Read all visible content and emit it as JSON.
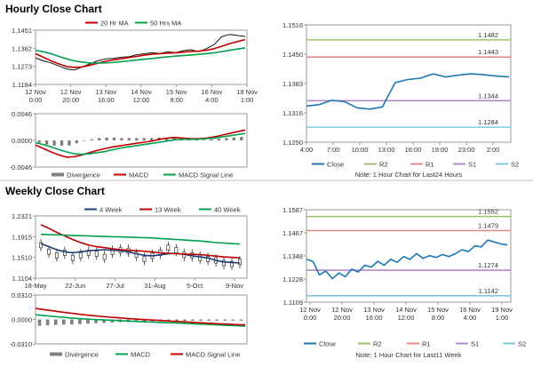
{
  "sections": {
    "hourly_title": "Hourly Close Chart",
    "weekly_title": "Weekly Close Chart"
  },
  "colors": {
    "red": "#c00000",
    "green": "#00a050",
    "close": "#1f77b4",
    "navy": "#1f3b73",
    "r2": "#9dc36a",
    "r1": "#e88b86",
    "s1": "#b28acb",
    "s2": "#7dc9dc",
    "hist": "#808080",
    "candle": "#333333"
  },
  "chart_data": [
    {
      "id": "hourly_price",
      "type": "line",
      "legend": [
        "20 Hr MA",
        "50 Hrs MA"
      ],
      "x_ticks": [
        [
          "12 Nov",
          "0:00"
        ],
        [
          "12 Nov",
          "20:00"
        ],
        [
          "13 Nov",
          "16:00"
        ],
        [
          "14 Nov",
          "12:00"
        ],
        [
          "15 Nov",
          "8:00"
        ],
        [
          "16 Nov",
          "4:00"
        ],
        [
          "19 Nov",
          "1:00"
        ]
      ],
      "y_ticks": [
        "1.1451",
        "1.1362",
        "1.1273",
        "1.1184"
      ],
      "ylim": [
        1.1184,
        1.1451
      ],
      "series": [
        {
          "name": "Close",
          "values": [
            1.1315,
            1.13,
            1.129,
            1.1275,
            1.126,
            1.1255,
            1.127,
            1.1285,
            1.13,
            1.131,
            1.1312,
            1.1318,
            1.132,
            1.133,
            1.1335,
            1.134,
            1.1336,
            1.1345,
            1.134,
            1.135,
            1.1355,
            1.1345,
            1.136,
            1.138,
            1.142,
            1.143,
            1.1425,
            1.142
          ]
        },
        {
          "name": "20 Hr MA",
          "values": [
            1.1335,
            1.1318,
            1.13,
            1.1285,
            1.1272,
            1.1268,
            1.127,
            1.1278,
            1.1288,
            1.1298,
            1.1305,
            1.131,
            1.1316,
            1.1322,
            1.1328,
            1.1333,
            1.1335,
            1.1338,
            1.134,
            1.1343,
            1.1346,
            1.1348,
            1.1352,
            1.136,
            1.1372,
            1.1385,
            1.1395,
            1.1405
          ]
        },
        {
          "name": "50 Hrs MA",
          "values": [
            1.1352,
            1.1345,
            1.1335,
            1.1322,
            1.131,
            1.13,
            1.1294,
            1.129,
            1.1289,
            1.129,
            1.1292,
            1.1296,
            1.13,
            1.1304,
            1.1308,
            1.1312,
            1.1316,
            1.132,
            1.1323,
            1.1326,
            1.1329,
            1.1332,
            1.1336,
            1.134,
            1.1346,
            1.1352,
            1.1358,
            1.1364
          ]
        }
      ]
    },
    {
      "id": "hourly_macd",
      "type": "line",
      "legend": [
        "Divergence",
        "MACD",
        "MACD Signal Line"
      ],
      "y_ticks": [
        "0.0046",
        "0.0000",
        "-0.0046"
      ],
      "ylim": [
        -0.0046,
        0.0046
      ],
      "series": [
        {
          "name": "MACD",
          "values": [
            -0.0008,
            -0.0014,
            -0.002,
            -0.0025,
            -0.0029,
            -0.0028,
            -0.0025,
            -0.0021,
            -0.0017,
            -0.0014,
            -0.0011,
            -0.0009,
            -0.0007,
            -0.0005,
            -0.0003,
            -0.0001,
            0.0002,
            0.0004,
            0.0005,
            0.0004,
            0.0003,
            0.0003,
            0.0004,
            0.0006,
            0.0009,
            0.0012,
            0.0015,
            0.0018
          ]
        },
        {
          "name": "MACD Signal Line",
          "values": [
            -0.0004,
            -0.0007,
            -0.0011,
            -0.0016,
            -0.002,
            -0.0023,
            -0.0024,
            -0.0023,
            -0.0021,
            -0.0019,
            -0.0016,
            -0.0013,
            -0.0011,
            -0.0009,
            -0.0007,
            -0.0005,
            -0.0003,
            -0.0001,
            0.0001,
            0.0002,
            0.0002,
            0.0002,
            0.0003,
            0.0004,
            0.0006,
            0.0008,
            0.001,
            0.0012
          ]
        },
        {
          "name": "Divergence",
          "values": [
            -0.0004,
            -0.0007,
            -0.0009,
            -0.0009,
            -0.0009,
            -0.0005,
            -0.0001,
            0.0002,
            0.0004,
            0.0005,
            0.0005,
            0.0004,
            0.0004,
            0.0004,
            0.0004,
            0.0004,
            0.0005,
            0.0005,
            0.0004,
            0.0002,
            0.0001,
            0.0001,
            0.0001,
            0.0002,
            0.0003,
            0.0004,
            0.0005,
            0.0006
          ]
        }
      ]
    },
    {
      "id": "hourly_close_24h",
      "type": "line",
      "note": "Note: 1 Hour Chart for Last24 Hours",
      "legend": [
        "Close",
        "R2",
        "R1",
        "S1",
        "S2"
      ],
      "x_ticks": [
        "4:00",
        "7:00",
        "10:00",
        "13:00",
        "16:00",
        "19:00",
        "23:00",
        "2:00"
      ],
      "y_ticks": [
        "1.1516",
        "1.1450",
        "1.1383",
        "1.1316",
        "1.1250"
      ],
      "ylim": [
        1.125,
        1.1516
      ],
      "levels": [
        {
          "name": "R2",
          "value": 1.1482,
          "label": "1.1482"
        },
        {
          "name": "R1",
          "value": 1.1443,
          "label": "1.1443"
        },
        {
          "name": "S1",
          "value": 1.1344,
          "label": "1.1344"
        },
        {
          "name": "S2",
          "value": 1.1284,
          "label": "1.1284"
        }
      ],
      "series": [
        {
          "name": "Close",
          "values": [
            1.1332,
            1.1335,
            1.1345,
            1.1342,
            1.1328,
            1.1325,
            1.133,
            1.1385,
            1.1392,
            1.1395,
            1.1405,
            1.1398,
            1.1402,
            1.1405,
            1.1403,
            1.14,
            1.1398
          ]
        }
      ]
    },
    {
      "id": "weekly_price",
      "type": "line",
      "legend": [
        "4 Week",
        "13 Week",
        "40 Week"
      ],
      "x_ticks": [
        "18-May",
        "22-Jun",
        "27-Jul",
        "31-Aug",
        "5-Oct",
        "9-Nov"
      ],
      "y_ticks": [
        "1.2321",
        "1.1915",
        "1.1510",
        "1.1104"
      ],
      "ylim": [
        1.1104,
        1.2321
      ],
      "series": [
        {
          "name": "4 Week",
          "values": [
            1.178,
            1.172,
            1.166,
            1.162,
            1.16,
            1.162,
            1.164,
            1.165,
            1.166,
            1.165,
            1.164,
            1.162,
            1.158,
            1.155,
            1.154,
            1.156,
            1.158,
            1.159,
            1.157,
            1.154,
            1.152,
            1.15,
            1.145,
            1.142,
            1.141,
            1.14
          ]
        },
        {
          "name": "13 Week",
          "values": [
            1.215,
            1.208,
            1.2,
            1.193,
            1.186,
            1.18,
            1.175,
            1.172,
            1.17,
            1.168,
            1.166,
            1.165,
            1.164,
            1.163,
            1.1615,
            1.16,
            1.159,
            1.158,
            1.1575,
            1.157,
            1.1565,
            1.155,
            1.1535,
            1.152,
            1.151,
            1.15
          ]
        },
        {
          "name": "40 Week",
          "values": [
            1.196,
            1.1955,
            1.195,
            1.1945,
            1.194,
            1.1935,
            1.193,
            1.1925,
            1.192,
            1.1915,
            1.191,
            1.1905,
            1.19,
            1.1895,
            1.189,
            1.188,
            1.187,
            1.186,
            1.185,
            1.184,
            1.183,
            1.1815,
            1.18,
            1.179,
            1.178,
            1.177
          ]
        }
      ],
      "candles": [
        1.175,
        1.162,
        1.155,
        1.16,
        1.15,
        1.155,
        1.16,
        1.158,
        1.152,
        1.162,
        1.165,
        1.164,
        1.156,
        1.148,
        1.154,
        1.16,
        1.17,
        1.165,
        1.156,
        1.155,
        1.15,
        1.148,
        1.145,
        1.14,
        1.138,
        1.142
      ]
    },
    {
      "id": "weekly_macd",
      "type": "line",
      "legend": [
        "Divergence",
        "MACD",
        "MACD Signal Line"
      ],
      "y_ticks": [
        "0.0310",
        "0.0000",
        "-0.0310"
      ],
      "ylim": [
        -0.031,
        0.031
      ],
      "series": [
        {
          "name": "MACD",
          "values": [
            0.006,
            0.005,
            0.004,
            0.003,
            0.002,
            0.0012,
            0.0005,
            0.0,
            -0.0005,
            -0.001,
            -0.0015,
            -0.002,
            -0.0025,
            -0.003,
            -0.0034,
            -0.0038,
            -0.0042,
            -0.0046,
            -0.005,
            -0.0055,
            -0.006,
            -0.0065,
            -0.007,
            -0.0075,
            -0.008,
            -0.0085
          ]
        },
        {
          "name": "MACD Signal Line",
          "values": [
            0.014,
            0.0125,
            0.011,
            0.0095,
            0.0082,
            0.007,
            0.0058,
            0.0047,
            0.0037,
            0.0028,
            0.002,
            0.0012,
            0.0005,
            -0.0002,
            -0.0008,
            -0.0014,
            -0.002,
            -0.0026,
            -0.0032,
            -0.0038,
            -0.0044,
            -0.005,
            -0.0055,
            -0.006,
            -0.0065,
            -0.007
          ]
        },
        {
          "name": "Divergence",
          "values": [
            -0.008,
            -0.0075,
            -0.007,
            -0.0065,
            -0.0062,
            -0.0058,
            -0.0053,
            -0.0047,
            -0.0042,
            -0.0038,
            -0.0035,
            -0.0032,
            -0.003,
            -0.0028,
            -0.0026,
            -0.0024,
            -0.0022,
            -0.002,
            -0.0018,
            -0.0017,
            -0.0016,
            -0.0015,
            -0.0015,
            -0.0015,
            -0.0015,
            -0.0015
          ]
        }
      ]
    },
    {
      "id": "weekly_close_hourly",
      "type": "line",
      "note": "Note: 1 Hour Chart for Last11 Week",
      "legend": [
        "Close",
        "R2",
        "R1",
        "S1",
        "S2"
      ],
      "x_ticks": [
        [
          "12 Nov",
          "0:00"
        ],
        [
          "12 Nov",
          "20:00"
        ],
        [
          "13 Nov",
          "16:00"
        ],
        [
          "14 Nov",
          "12:00"
        ],
        [
          "15 Nov",
          "8:00"
        ],
        [
          "16 Nov",
          "4:00"
        ],
        [
          "19 Nov",
          "1:00"
        ]
      ],
      "y_ticks": [
        "1.1587",
        "1.1467",
        "1.1348",
        "1.1228",
        "1.1109"
      ],
      "ylim": [
        1.1109,
        1.1587
      ],
      "levels": [
        {
          "name": "R2",
          "value": 1.1552,
          "label": "1.1552"
        },
        {
          "name": "R1",
          "value": 1.1479,
          "label": "1.1479"
        },
        {
          "name": "S1",
          "value": 1.1274,
          "label": "1.1274"
        },
        {
          "name": "S2",
          "value": 1.1142,
          "label": "1.1142"
        }
      ],
      "series": [
        {
          "name": "Close",
          "values": [
            1.133,
            1.132,
            1.125,
            1.127,
            1.123,
            1.126,
            1.124,
            1.128,
            1.1265,
            1.13,
            1.129,
            1.132,
            1.13,
            1.133,
            1.1315,
            1.1345,
            1.133,
            1.136,
            1.1335,
            1.135,
            1.134,
            1.1355,
            1.1345,
            1.136,
            1.138,
            1.137,
            1.14,
            1.1395,
            1.143,
            1.142,
            1.141,
            1.1405
          ]
        }
      ]
    }
  ]
}
